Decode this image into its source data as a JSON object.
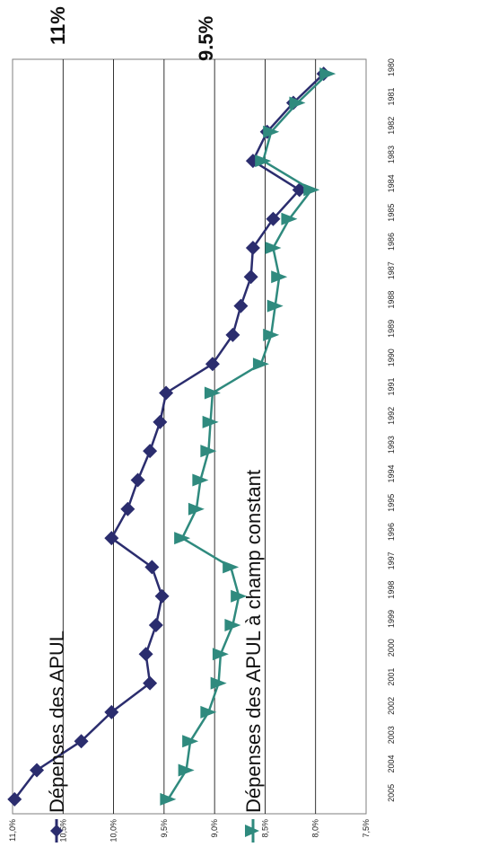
{
  "chart_data": {
    "type": "line",
    "orientation": "rotated-90-clockwise",
    "x": [
      "1980",
      "1981",
      "1982",
      "1983",
      "1984",
      "1985",
      "1986",
      "1987",
      "1988",
      "1989",
      "1990",
      "1991",
      "1992",
      "1993",
      "1994",
      "1995",
      "1996",
      "1997",
      "1998",
      "1999",
      "2000",
      "2001",
      "2002",
      "2003",
      "2004",
      "2005"
    ],
    "ylim": [
      7.5,
      11.0
    ],
    "yticks": [
      "7,5%",
      "8,0%",
      "8,5%",
      "9,0%",
      "9,5%",
      "10,0%",
      "10,5%",
      "11,0%"
    ],
    "grid": true,
    "legend_position": "bottom",
    "annotations": [
      "11%",
      "9.5%"
    ],
    "series": [
      {
        "name": "Dépenses des APUL",
        "color": "#2b2d6e",
        "marker": "diamond",
        "values": [
          7.92,
          8.22,
          8.48,
          8.62,
          8.16,
          8.42,
          8.62,
          8.64,
          8.74,
          8.82,
          9.02,
          9.48,
          9.54,
          9.64,
          9.76,
          9.86,
          10.02,
          9.62,
          9.52,
          9.58,
          9.68,
          9.64,
          10.02,
          10.32,
          10.76,
          10.98
        ]
      },
      {
        "name": "Dépenses des APUL à champ constant",
        "color": "#2f8a7e",
        "marker": "triangle",
        "values": [
          7.88,
          8.18,
          8.44,
          8.52,
          8.04,
          8.26,
          8.42,
          8.36,
          8.4,
          8.44,
          8.54,
          9.02,
          9.04,
          9.06,
          9.14,
          9.18,
          9.32,
          8.84,
          8.76,
          8.82,
          8.94,
          8.96,
          9.06,
          9.24,
          9.28,
          9.46
        ]
      }
    ]
  }
}
